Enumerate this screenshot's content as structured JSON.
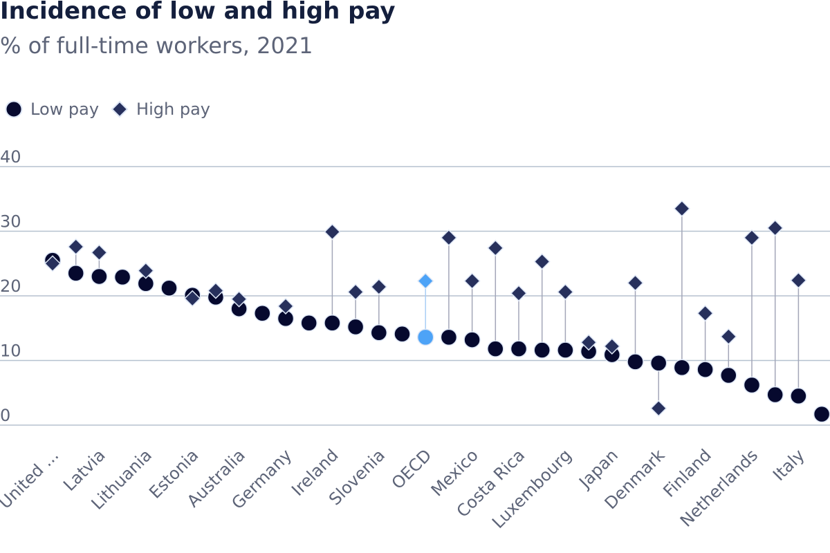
{
  "chart_data": {
    "type": "dot-range",
    "title": "Incidence of low and high pay",
    "subtitle": "% of full-time workers, 2021",
    "ylim": [
      0,
      40
    ],
    "y_ticks": [
      "0",
      "10",
      "20",
      "30",
      "40"
    ],
    "grid": true,
    "legend_position": "top-left",
    "legend": [
      "Low pay",
      "High pay"
    ],
    "categories": [
      "United ...",
      "",
      "Latvia",
      "",
      "Lithuania",
      "",
      "Estonia",
      "",
      "Australia",
      "",
      "Germany",
      "",
      "Ireland",
      "",
      "Slovenia",
      "",
      "OECD",
      "",
      "Mexico",
      "",
      "Costa Rica",
      "",
      "Luxembourg",
      "",
      "Japan",
      "",
      "Denmark",
      "",
      "Finland",
      "",
      "Netherlands",
      "",
      "Italy",
      ""
    ],
    "highlight_category_index": 16,
    "series": [
      {
        "name": "Low pay",
        "marker": "circle",
        "values": [
          25.5,
          23.5,
          23.0,
          22.9,
          21.9,
          21.2,
          20.1,
          19.8,
          18.0,
          17.3,
          16.5,
          15.8,
          15.8,
          15.2,
          14.3,
          14.1,
          13.6,
          13.6,
          13.2,
          11.8,
          11.8,
          11.6,
          11.6,
          11.4,
          10.9,
          9.8,
          9.6,
          8.9,
          8.6,
          7.7,
          6.2,
          4.7,
          4.5,
          1.7
        ]
      },
      {
        "name": "High pay",
        "marker": "diamond",
        "values": [
          25.0,
          27.6,
          26.7,
          null,
          23.9,
          null,
          19.6,
          20.8,
          19.5,
          null,
          18.4,
          null,
          29.9,
          20.6,
          21.4,
          null,
          22.3,
          29.0,
          22.3,
          27.4,
          20.4,
          25.3,
          20.6,
          12.8,
          12.2,
          22.0,
          2.6,
          33.5,
          17.3,
          13.7,
          29.0,
          30.5,
          22.4,
          null
        ]
      }
    ]
  },
  "colors": {
    "low": "#06092e",
    "high": "#27305c",
    "highlight": "#4da3f7",
    "grid": "#b5c1cf",
    "connector": "#a3a6b8",
    "marker_stroke": "#dde6f5",
    "text": "#5d6478",
    "title": "#141f3d"
  }
}
